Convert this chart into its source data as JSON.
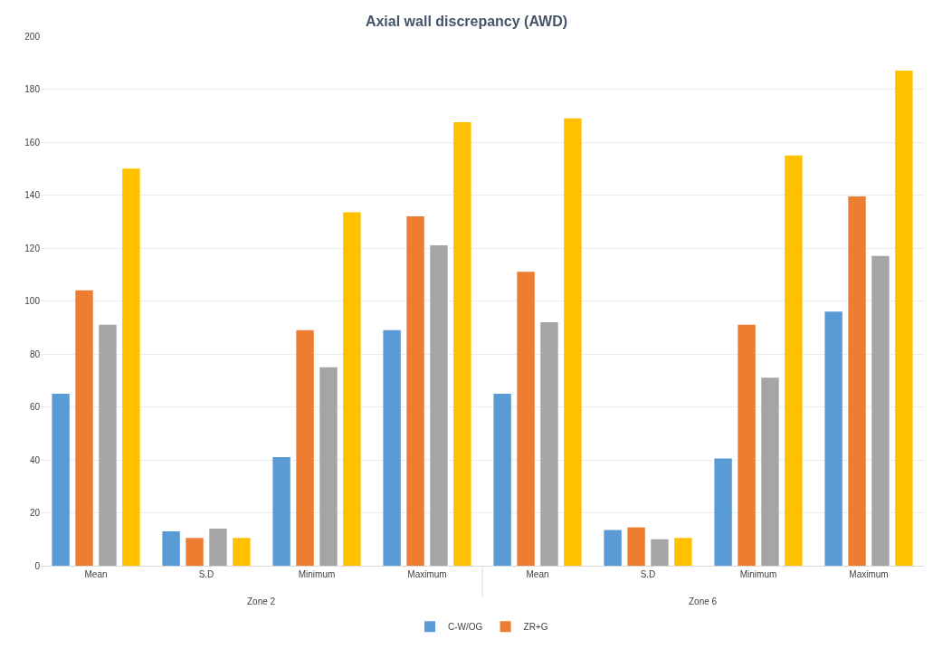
{
  "chart_data": {
    "type": "bar",
    "title": "Axial wall discrepancy (AWD)",
    "categories": [
      "Mean",
      "S.D",
      "Minimum",
      "Maximum",
      "Mean",
      "S.D",
      "Minimum",
      "Maximum"
    ],
    "series": [
      {
        "name": "C-W/OG",
        "color": "#5b9bd5",
        "values": [
          65,
          13,
          41,
          89,
          65,
          13.5,
          40.5,
          96
        ]
      },
      {
        "name": "ZR+G",
        "color": "#ed7d31",
        "values": [
          104,
          10.5,
          89,
          132,
          111,
          14.5,
          91,
          139.5
        ]
      },
      {
        "color": "#a5a5a5",
        "values": [
          91,
          14,
          75,
          121,
          92,
          10,
          71,
          117
        ]
      },
      {
        "color": "#ffc000",
        "values": [
          150,
          10.5,
          133.5,
          167.5,
          169,
          10.5,
          155,
          187
        ]
      }
    ],
    "annotations": [
      "Zone 2",
      "Zone 6"
    ],
    "ylim": [
      0,
      200
    ],
    "yticks": [
      0,
      20,
      40,
      60,
      80,
      100,
      120,
      140,
      160,
      180,
      200
    ],
    "grid": "y",
    "legend": "bottom"
  }
}
